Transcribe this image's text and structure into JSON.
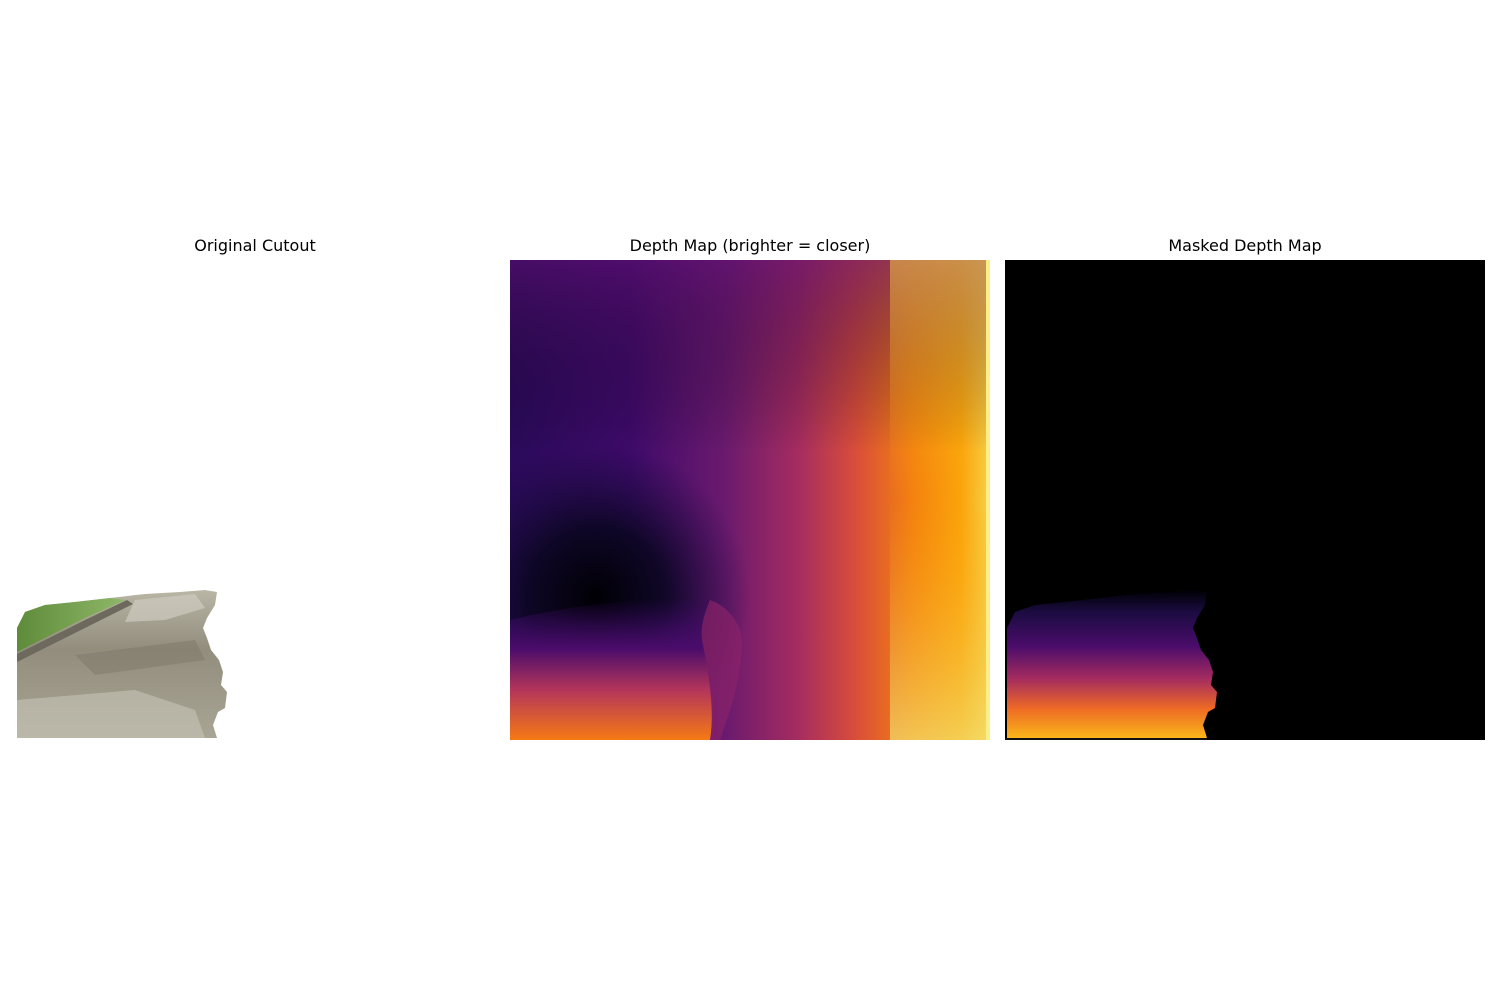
{
  "panels": [
    {
      "title": "Original Cutout"
    },
    {
      "title": "Depth Map (brighter = closer)"
    },
    {
      "title": "Masked Depth Map"
    }
  ],
  "colormap": [
    "#000004",
    "#1b0c41",
    "#4a0c6b",
    "#781c6d",
    "#a52c60",
    "#cf4446",
    "#ed6925",
    "#fb9b06",
    "#f7d13d",
    "#fcffa4"
  ]
}
